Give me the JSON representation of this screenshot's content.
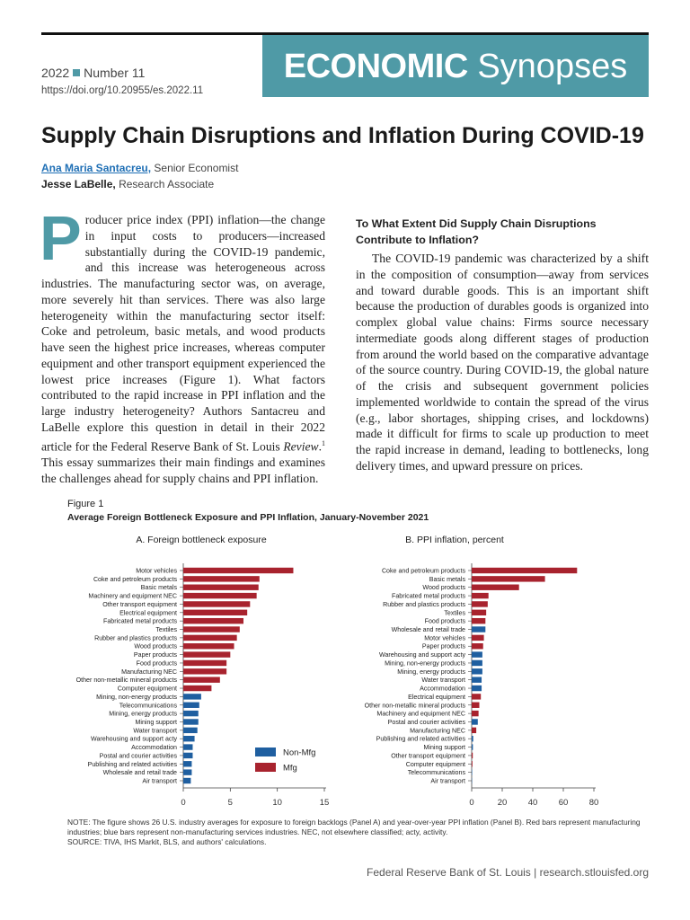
{
  "header": {
    "series_bold": "ECONOMIC",
    "series_light": "Synopses",
    "year": "2022",
    "number": "Number 11",
    "doi": "https://doi.org/10.20955/es.2022.11"
  },
  "title": "Supply Chain Disruptions and Inflation During COVID-19",
  "authors": [
    {
      "name": "Ana Maria Santacreu,",
      "role": "Senior Economist"
    },
    {
      "name": "Jesse LaBelle,",
      "role": "Research Associate"
    }
  ],
  "body": {
    "drop_cap": "P",
    "intro_1": "roducer price index (PPI) inflation—the change in input costs to producers—increased substantially during the COVID-19 pandemic, and this increase was heterogeneous across industries. The manufacturing sector was, on average, more severely hit than services. There was also large heterogeneity within the manufacturing sector itself: Coke and petroleum, basic metals, and wood products have seen the highest price increases, whereas computer equipment and other transport equipment experienced the lowest price increases (Figure 1). What factors contributed to the rapid increase in PPI inflation and the large industry heterogeneity? Authors Santacreu and LaBelle explore this question in detail in their 2022 article for the Federal Reserve Bank of St. Louis ",
    "intro_italic": "Review",
    "intro_2": ".",
    "footnote": "1",
    "intro_3": " This essay summarizes their main findings and examines the challenges ahead for supply chains and PPI inflation.",
    "section_heading": "To What Extent Did Supply Chain Disruptions Contribute to Inflation?",
    "section_text": "The COVID-19 pandemic was characterized by a shift in the composition of consumption—away from services and toward durable goods. This is an important shift because the production of durables goods is organized into complex global value chains: Firms source necessary intermediate goods along different stages of production from around the world based on the comparative advantage of the source country. During COVID-19, the global nature of the crisis and subsequent government policies implemented worldwide to contain the spread of the virus (e.g., labor shortages, shipping crises, and lockdowns) made it difficult for firms to scale up production to meet the rapid increase in demand, leading to bottlenecks, long delivery times, and upward pressure on prices."
  },
  "figure": {
    "label": "Figure 1",
    "title": "Average Foreign Bottleneck Exposure and PPI Inflation, January-November 2021",
    "note": "NOTE: The figure shows 26 U.S. industry averages for exposure to foreign backlogs (Panel A) and year-over-year PPI inflation (Panel B). Red bars represent manufacturing industries; blue bars represent non-manufacturing services industries. NEC, not elsewhere classified; acty, activity.",
    "source": "SOURCE: TIVA, IHS Markit, BLS, and authors' calculations."
  },
  "chart_data": [
    {
      "type": "bar",
      "orientation": "horizontal",
      "title": "A. Foreign bottleneck exposure",
      "categories": [
        "Motor vehicles",
        "Coke and petroleum products",
        "Basic metals",
        "Machinery and equipment NEC",
        "Other transport equipment",
        "Electrical equipment",
        "Fabricated metal products",
        "Textiles",
        "Rubber and plastics products",
        "Wood products",
        "Paper products",
        "Food products",
        "Manufacturing NEC",
        "Other non-metallic mineral products",
        "Computer equipment",
        "Mining, non-energy products",
        "Telecommunications",
        "Mining, energy products",
        "Mining support",
        "Water transport",
        "Warehousing and support acty",
        "Accommodation",
        "Postal and courier activities",
        "Publishing and related activities",
        "Wholesale and retail trade",
        "Air transport"
      ],
      "series": [
        {
          "name": "Non-Mfg",
          "color": "#1f5fa0",
          "values": [
            null,
            null,
            null,
            null,
            null,
            null,
            null,
            null,
            null,
            null,
            null,
            null,
            null,
            null,
            null,
            1.9,
            1.7,
            1.6,
            1.6,
            1.5,
            1.2,
            1.0,
            1.0,
            0.9,
            0.9,
            0.8
          ]
        },
        {
          "name": "Mfg",
          "color": "#a8232e",
          "values": [
            11.7,
            8.1,
            8.0,
            7.8,
            7.1,
            6.8,
            6.4,
            6.0,
            5.7,
            5.4,
            5.0,
            4.6,
            4.6,
            3.9,
            3.0,
            null,
            null,
            null,
            null,
            null,
            null,
            null,
            null,
            null,
            null,
            null
          ]
        }
      ],
      "xlim": [
        0,
        15
      ],
      "xticks": [
        0,
        5,
        10,
        15
      ],
      "legend": true
    },
    {
      "type": "bar",
      "orientation": "horizontal",
      "title": "B. PPI inflation, percent",
      "categories": [
        "Coke and petroleum products",
        "Basic metals",
        "Wood products",
        "Fabricated metal products",
        "Rubber and plastics products",
        "Textiles",
        "Food products",
        "Wholesale and retail trade",
        "Motor vehicles",
        "Paper products",
        "Warehousing and support acty",
        "Mining, non-energy products",
        "Mining, energy products",
        "Water transport",
        "Accommodation",
        "Electrical equipment",
        "Other non-metallic mineral products",
        "Machinery and equipment NEC",
        "Postal and courier activities",
        "Manufacturing NEC",
        "Publishing and related activities",
        "Mining support",
        "Other transport equipment",
        "Computer equipment",
        "Telecommunications",
        "Air transport"
      ],
      "series": [
        {
          "name": "Non-Mfg",
          "color": "#1f5fa0",
          "values": [
            null,
            null,
            null,
            null,
            null,
            null,
            null,
            9,
            null,
            null,
            7,
            7,
            7,
            6.5,
            6.5,
            null,
            null,
            null,
            4,
            null,
            1,
            0.8,
            null,
            null,
            0.3,
            0.2
          ]
        },
        {
          "name": "Mfg",
          "color": "#a8232e",
          "values": [
            69,
            48,
            31,
            11,
            10.5,
            9.5,
            9,
            null,
            8,
            7.5,
            null,
            null,
            null,
            null,
            null,
            6,
            5,
            4.5,
            null,
            3,
            null,
            null,
            0.7,
            0.5,
            null,
            null
          ]
        }
      ],
      "xlim": [
        0,
        80
      ],
      "xticks": [
        0,
        20,
        40,
        60,
        80
      ],
      "legend": false
    }
  ],
  "footer": "Federal Reserve Bank of St. Louis | research.stlouisfed.org"
}
